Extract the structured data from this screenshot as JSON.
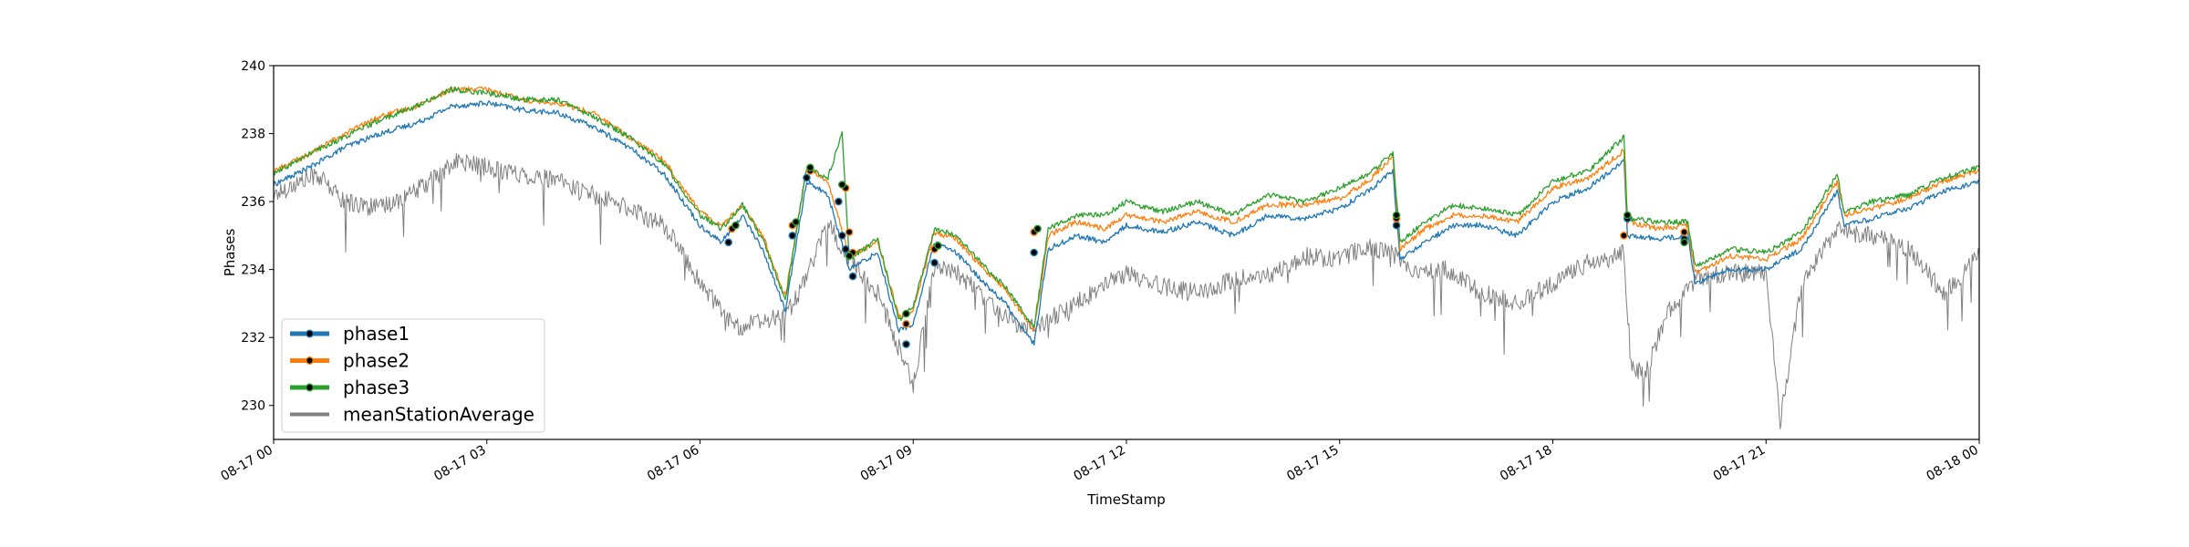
{
  "chart_data": {
    "type": "line",
    "xlabel": "TimeStamp",
    "ylabel": "Phases",
    "xlim": [
      "08-17 00",
      "08-18 00"
    ],
    "ylim": [
      229,
      240
    ],
    "x_ticks": [
      "08-17 00",
      "08-17 03",
      "08-17 06",
      "08-17 09",
      "08-17 12",
      "08-17 15",
      "08-17 18",
      "08-17 21",
      "08-18 00"
    ],
    "y_ticks": [
      230,
      232,
      234,
      236,
      238,
      240
    ],
    "legend_position": "lower-left",
    "series": [
      {
        "name": "phase1",
        "color": "#1f77b4",
        "hours": [
          0,
          0.5,
          1,
          1.5,
          2,
          2.5,
          3,
          3.5,
          4,
          4.5,
          5,
          5.5,
          6,
          6.3,
          6.6,
          6.9,
          7.2,
          7.5,
          7.8,
          8.1,
          8.5,
          8.8,
          9.0,
          9.3,
          9.6,
          10.0,
          10.3,
          10.7,
          10.9,
          11.3,
          11.7,
          12.0,
          12.5,
          13.0,
          13.5,
          14.0,
          14.5,
          15.0,
          15.4,
          15.75,
          15.85,
          16.2,
          16.6,
          17.0,
          17.5,
          18.0,
          18.5,
          19.0,
          19.05,
          19.5,
          19.9,
          20.0,
          20.5,
          21.0,
          21.5,
          22.0,
          22.1,
          22.5,
          23.0,
          23.5,
          24.0
        ],
        "values": [
          236.5,
          237.0,
          237.6,
          238.0,
          238.3,
          238.8,
          238.9,
          238.7,
          238.6,
          238.2,
          237.6,
          236.8,
          235.3,
          234.8,
          235.6,
          234.5,
          232.8,
          236.6,
          236.2,
          234.0,
          234.5,
          232.2,
          232.4,
          234.8,
          234.5,
          233.6,
          233.0,
          231.8,
          234.6,
          235.0,
          234.8,
          235.3,
          235.1,
          235.4,
          235.0,
          235.6,
          235.5,
          235.8,
          236.3,
          236.9,
          234.3,
          234.8,
          235.3,
          235.3,
          235.0,
          236.0,
          236.4,
          237.2,
          235.0,
          234.9,
          235.0,
          233.6,
          234.0,
          234.0,
          234.6,
          236.3,
          235.3,
          235.5,
          235.8,
          236.3,
          236.6
        ]
      },
      {
        "name": "phase2",
        "color": "#ff7f0e",
        "hours": [
          0,
          0.5,
          1,
          1.5,
          2,
          2.5,
          3,
          3.5,
          4,
          4.5,
          5,
          5.5,
          6,
          6.3,
          6.6,
          6.9,
          7.2,
          7.5,
          7.8,
          8.1,
          8.5,
          8.8,
          9.0,
          9.3,
          9.6,
          10.0,
          10.3,
          10.7,
          10.9,
          11.3,
          11.7,
          12.0,
          12.5,
          13.0,
          13.5,
          14.0,
          14.5,
          15.0,
          15.4,
          15.75,
          15.85,
          16.2,
          16.6,
          17.0,
          17.5,
          18.0,
          18.5,
          19.0,
          19.05,
          19.5,
          19.9,
          20.0,
          20.5,
          21.0,
          21.5,
          22.0,
          22.1,
          22.5,
          23.0,
          23.5,
          24.0
        ],
        "values": [
          236.9,
          237.4,
          238.0,
          238.5,
          238.8,
          239.3,
          239.3,
          239.0,
          238.9,
          238.6,
          237.9,
          237.2,
          235.7,
          235.3,
          235.9,
          234.9,
          233.2,
          237.0,
          236.6,
          234.4,
          234.8,
          232.6,
          232.8,
          235.1,
          234.9,
          234.0,
          233.4,
          232.2,
          235.0,
          235.4,
          235.2,
          235.6,
          235.4,
          235.7,
          235.4,
          235.9,
          235.9,
          236.1,
          236.6,
          237.3,
          234.6,
          235.2,
          235.6,
          235.6,
          235.4,
          236.4,
          236.7,
          237.5,
          235.4,
          235.2,
          235.3,
          233.9,
          234.4,
          234.3,
          234.9,
          236.6,
          235.6,
          235.8,
          236.1,
          236.6,
          236.9
        ]
      },
      {
        "name": "phase3",
        "color": "#2ca02c",
        "hours": [
          0,
          0.5,
          1,
          1.5,
          2,
          2.5,
          3,
          3.5,
          4,
          4.5,
          5,
          5.5,
          6,
          6.3,
          6.6,
          6.9,
          7.2,
          7.5,
          7.8,
          8.0,
          8.1,
          8.5,
          8.8,
          9.0,
          9.3,
          9.6,
          10.0,
          10.3,
          10.7,
          10.9,
          11.3,
          11.7,
          12.0,
          12.5,
          13.0,
          13.5,
          14.0,
          14.5,
          15.0,
          15.4,
          15.75,
          15.85,
          16.2,
          16.6,
          17.0,
          17.5,
          18.0,
          18.5,
          19.0,
          19.05,
          19.5,
          19.9,
          20.0,
          20.5,
          21.0,
          21.5,
          22.0,
          22.1,
          22.5,
          23.0,
          23.5,
          24.0
        ],
        "values": [
          236.8,
          237.4,
          237.9,
          238.4,
          238.8,
          239.3,
          239.2,
          239.0,
          239.0,
          238.5,
          237.9,
          237.1,
          235.6,
          235.2,
          235.9,
          234.8,
          233.1,
          237.0,
          236.7,
          238.0,
          234.3,
          234.9,
          232.5,
          232.9,
          235.2,
          235.0,
          234.1,
          233.5,
          232.3,
          235.2,
          235.6,
          235.6,
          236.0,
          235.7,
          236.0,
          235.6,
          236.2,
          236.0,
          236.4,
          236.8,
          237.4,
          234.8,
          235.4,
          235.9,
          235.8,
          235.6,
          236.6,
          236.9,
          237.9,
          235.5,
          235.4,
          235.4,
          234.1,
          234.6,
          234.5,
          235.1,
          236.8,
          235.7,
          236.0,
          236.2,
          236.7,
          237.0
        ]
      },
      {
        "name": "meanStationAverage",
        "color": "#808080",
        "hours": [
          0,
          0.3,
          0.6,
          1.0,
          1.5,
          2.0,
          2.4,
          2.6,
          3.0,
          3.5,
          4.0,
          4.5,
          5.0,
          5.5,
          6.0,
          6.5,
          7.0,
          7.3,
          7.5,
          7.8,
          8.0,
          8.5,
          9.0,
          9.3,
          9.6,
          10.0,
          10.5,
          10.8,
          11.2,
          11.6,
          12.0,
          12.5,
          13.0,
          13.5,
          14.0,
          14.5,
          15.0,
          15.4,
          15.8,
          16.0,
          16.5,
          17.0,
          17.5,
          18.0,
          18.5,
          18.8,
          19.0,
          19.1,
          19.3,
          19.6,
          20.0,
          20.5,
          21.0,
          21.2,
          21.5,
          22.0,
          22.5,
          23.0,
          23.5,
          24.0
        ],
        "values": [
          236.2,
          236.5,
          236.8,
          236.0,
          235.8,
          236.3,
          236.9,
          237.2,
          237.0,
          236.8,
          236.6,
          236.2,
          235.8,
          235.3,
          233.6,
          232.3,
          232.5,
          232.9,
          233.8,
          235.4,
          234.6,
          233.3,
          230.6,
          234.1,
          233.9,
          233.2,
          232.3,
          232.4,
          232.9,
          233.4,
          233.9,
          233.5,
          233.3,
          233.7,
          233.8,
          234.4,
          234.3,
          234.7,
          234.4,
          234.0,
          234.0,
          233.3,
          233.0,
          233.6,
          234.2,
          234.3,
          234.5,
          231.2,
          230.9,
          232.7,
          233.7,
          233.9,
          233.9,
          229.5,
          233.6,
          235.2,
          235.0,
          234.6,
          233.3,
          234.4
        ]
      }
    ],
    "markers": [
      {
        "series": "phase1",
        "points": [
          [
            6.4,
            234.8
          ],
          [
            7.3,
            235.0
          ],
          [
            7.5,
            236.7
          ],
          [
            7.95,
            236.0
          ],
          [
            8.0,
            235.0
          ],
          [
            8.05,
            234.6
          ],
          [
            8.15,
            233.8
          ],
          [
            8.9,
            231.8
          ],
          [
            9.3,
            234.2
          ],
          [
            10.7,
            234.5
          ],
          [
            15.8,
            235.3
          ],
          [
            19.05,
            235.5
          ],
          [
            19.85,
            234.9
          ]
        ]
      },
      {
        "series": "phase2",
        "points": [
          [
            6.45,
            235.2
          ],
          [
            7.3,
            235.3
          ],
          [
            7.55,
            236.9
          ],
          [
            8.05,
            236.4
          ],
          [
            8.1,
            235.1
          ],
          [
            8.15,
            234.5
          ],
          [
            8.9,
            232.4
          ],
          [
            9.3,
            234.6
          ],
          [
            10.7,
            235.1
          ],
          [
            15.8,
            235.5
          ],
          [
            19.0,
            235.0
          ],
          [
            19.85,
            235.1
          ]
        ]
      },
      {
        "series": "phase3",
        "points": [
          [
            6.5,
            235.3
          ],
          [
            7.35,
            235.4
          ],
          [
            7.55,
            237.0
          ],
          [
            8.0,
            236.5
          ],
          [
            8.1,
            234.4
          ],
          [
            8.9,
            232.7
          ],
          [
            9.35,
            234.7
          ],
          [
            10.75,
            235.2
          ],
          [
            15.8,
            235.6
          ],
          [
            19.05,
            235.6
          ],
          [
            19.85,
            234.8
          ]
        ]
      }
    ]
  }
}
